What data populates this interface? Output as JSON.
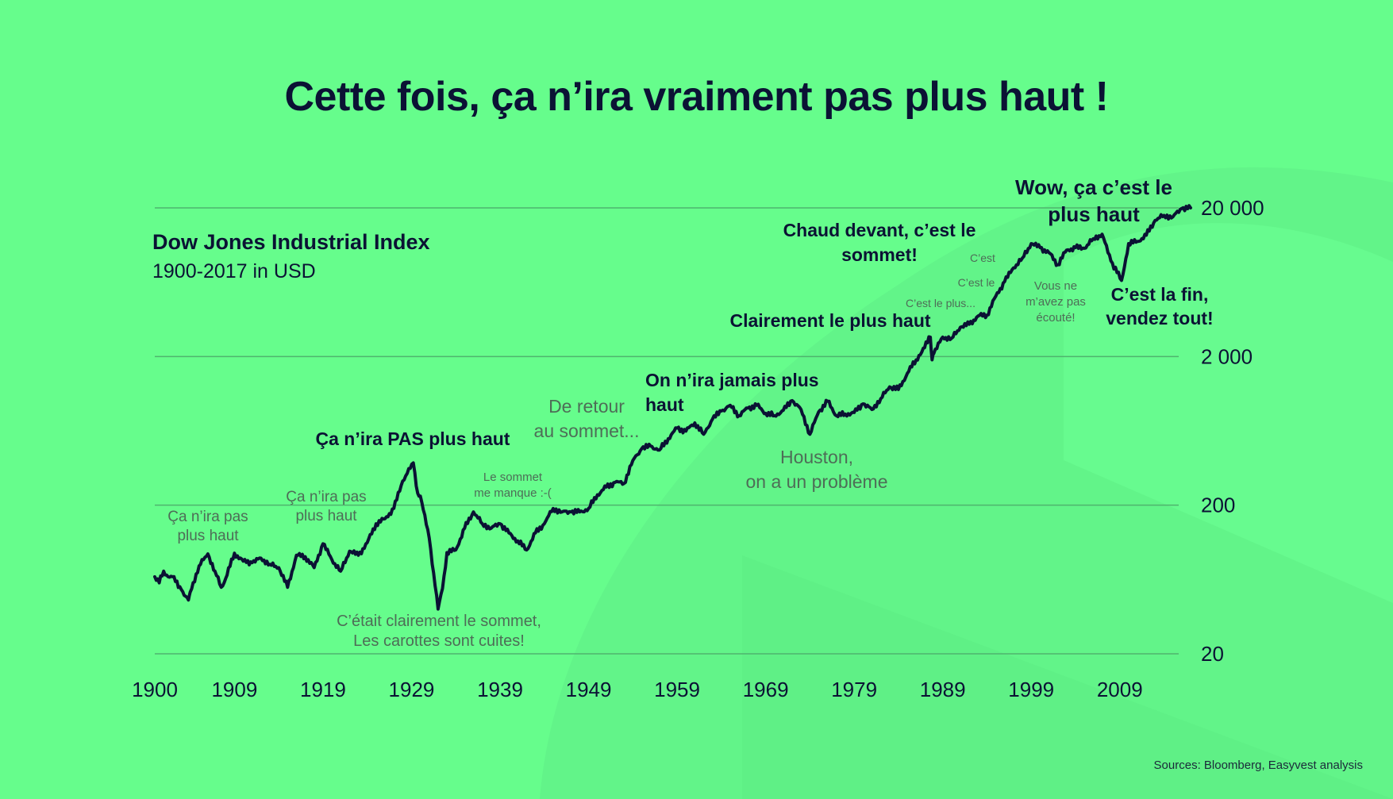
{
  "title": "Cette fois, ça n’ira vraiment pas plus haut !",
  "source": "Sources: Bloomberg, Easyvest analysis",
  "chart_data": {
    "type": "line",
    "title": "Dow Jones Industrial Index",
    "subtitle": "1900-2017 in USD",
    "y_scale": "log",
    "ylim": [
      20,
      20000
    ],
    "xlim": [
      1900,
      2017
    ],
    "x_ticks": [
      "1900",
      "1909",
      "1919",
      "1929",
      "1939",
      "1949",
      "1959",
      "1969",
      "1979",
      "1989",
      "1999",
      "2009"
    ],
    "y_ticks": [
      {
        "value": 20,
        "label": "20"
      },
      {
        "value": 200,
        "label": "200"
      },
      {
        "value": 2000,
        "label": "2 000"
      },
      {
        "value": 20000,
        "label": "20 000"
      }
    ],
    "grid": true,
    "colors": {
      "line": "#0b1234",
      "background": "#66fd8c",
      "grid": "#4fb46e"
    },
    "series": [
      {
        "x": [
          1900,
          1900.5,
          1901,
          1901.5,
          1902,
          1903,
          1903.8,
          1904,
          1905,
          1906,
          1906.8,
          1907.5,
          1908,
          1909,
          1910,
          1911,
          1912,
          1913,
          1914,
          1915,
          1916,
          1917,
          1918,
          1919,
          1920,
          1921,
          1922,
          1923,
          1924,
          1925,
          1926,
          1927,
          1928,
          1929.2,
          1929.7,
          1930,
          1931,
          1931.5,
          1932,
          1932.5,
          1933,
          1934,
          1935,
          1936,
          1937,
          1938,
          1939,
          1940,
          1941,
          1942,
          1943,
          1944,
          1945,
          1946,
          1947,
          1948,
          1949,
          1950,
          1951,
          1952,
          1953,
          1954,
          1955,
          1956,
          1957,
          1958,
          1959,
          1960,
          1961,
          1962,
          1963,
          1964,
          1965,
          1966,
          1967,
          1968,
          1969,
          1970,
          1971,
          1972,
          1973,
          1974,
          1975,
          1976,
          1977,
          1978,
          1979,
          1980,
          1981,
          1982,
          1983,
          1984,
          1985,
          1986,
          1987.6,
          1987.8,
          1988,
          1989,
          1990,
          1991,
          1992,
          1993,
          1994,
          1995,
          1996,
          1997,
          1998,
          1999,
          2000,
          2001,
          2002,
          2003,
          2004,
          2005,
          2006,
          2007,
          2008,
          2009.2,
          2010,
          2011,
          2012,
          2013,
          2014,
          2015,
          2016,
          2017
        ],
        "y": [
          66,
          60,
          72,
          66,
          66,
          54,
          46,
          52,
          78,
          94,
          72,
          56,
          64,
          95,
          84,
          82,
          88,
          80,
          76,
          56,
          92,
          90,
          76,
          110,
          86,
          72,
          98,
          92,
          112,
          150,
          162,
          190,
          290,
          385,
          240,
          230,
          120,
          70,
          40,
          55,
          96,
          100,
          140,
          180,
          150,
          140,
          150,
          130,
          115,
          100,
          130,
          150,
          190,
          180,
          180,
          180,
          190,
          235,
          265,
          285,
          280,
          400,
          480,
          500,
          470,
          560,
          660,
          630,
          715,
          600,
          760,
          860,
          940,
          800,
          900,
          940,
          830,
          800,
          870,
          1010,
          880,
          600,
          850,
          1000,
          800,
          820,
          840,
          960,
          880,
          1040,
          1250,
          1200,
          1540,
          1900,
          2700,
          1900,
          2100,
          2700,
          2650,
          3150,
          3300,
          3750,
          3800,
          5100,
          6400,
          7900,
          9200,
          11500,
          10800,
          10000,
          8300,
          10400,
          10800,
          10700,
          12400,
          13300,
          8800,
          6500,
          11500,
          11900,
          13100,
          16500,
          17800,
          17400,
          19800,
          20000
        ]
      }
    ],
    "annotations": [
      {
        "id": "a1900",
        "style": "gray",
        "lines": [
          "Ça n’ira pas",
          "plus haut"
        ]
      },
      {
        "id": "a1919",
        "style": "gray",
        "lines": [
          "Ça n’ira pas",
          "plus haut"
        ]
      },
      {
        "id": "a1929",
        "style": "bold",
        "lines": [
          "Ça n’ira PAS plus haut"
        ]
      },
      {
        "id": "a1932",
        "style": "gray",
        "lines": [
          "C’était clairement le sommet,",
          "Les carottes sont cuites!"
        ]
      },
      {
        "id": "a1939",
        "style": "gray",
        "lines": [
          "Le sommet",
          "me manque :-("
        ]
      },
      {
        "id": "a1949",
        "style": "gray",
        "lines": [
          "De retour",
          "au sommet..."
        ]
      },
      {
        "id": "a1959",
        "style": "bold",
        "lines": [
          "On n’ira jamais plus",
          "haut"
        ]
      },
      {
        "id": "a1974",
        "style": "gray",
        "lines": [
          "Houston,",
          "on a un problème"
        ]
      },
      {
        "id": "a1987",
        "style": "bold",
        "lines": [
          "Clairement le plus haut"
        ]
      },
      {
        "id": "a1990a",
        "style": "gray",
        "lines": [
          "C’est le plus..."
        ]
      },
      {
        "id": "a1990b",
        "style": "gray",
        "lines": [
          "C’est le"
        ]
      },
      {
        "id": "a1990c",
        "style": "gray",
        "lines": [
          "C’est"
        ]
      },
      {
        "id": "a1998",
        "style": "bold",
        "lines": [
          "Chaud devant, c’est le",
          "sommet!"
        ]
      },
      {
        "id": "a2002",
        "style": "gray",
        "lines": [
          "Vous ne",
          "m’avez pas",
          "écouté!"
        ]
      },
      {
        "id": "a2009",
        "style": "bold",
        "lines": [
          "C’est la fin,",
          "vendez tout!"
        ]
      },
      {
        "id": "a2017",
        "style": "bold",
        "lines": [
          "Wow, ça c’est le",
          "plus haut"
        ]
      }
    ]
  }
}
